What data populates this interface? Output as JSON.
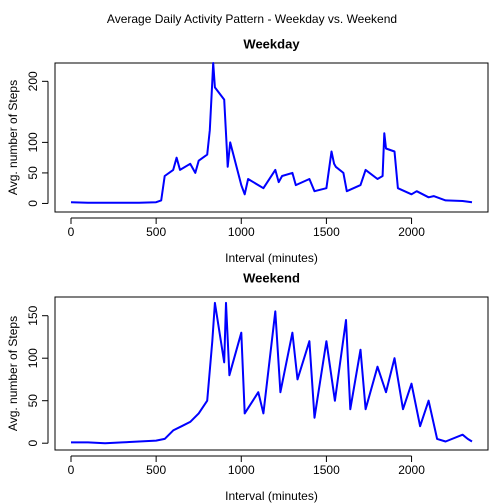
{
  "title": "Average Daily Activity Pattern - Weekday vs. Weekend",
  "chart_data": [
    {
      "type": "line",
      "title": "Weekday",
      "xlabel": "Interval (minutes)",
      "ylabel": "Avg. number of Steps",
      "color": "#0000ff",
      "x": [
        0,
        100,
        200,
        300,
        400,
        500,
        530,
        550,
        600,
        620,
        640,
        700,
        730,
        750,
        800,
        815,
        830,
        835,
        845,
        900,
        915,
        920,
        935,
        1000,
        1020,
        1040,
        1100,
        1130,
        1200,
        1220,
        1240,
        1300,
        1320,
        1400,
        1430,
        1500,
        1530,
        1545,
        1555,
        1600,
        1620,
        1700,
        1730,
        1800,
        1830,
        1840,
        1850,
        1900,
        1920,
        2000,
        2030,
        2100,
        2130,
        2200,
        2300,
        2355
      ],
      "values": [
        2,
        1,
        1,
        1,
        1,
        2,
        5,
        45,
        55,
        75,
        55,
        65,
        50,
        70,
        80,
        120,
        200,
        230,
        190,
        170,
        90,
        60,
        100,
        30,
        15,
        40,
        30,
        25,
        55,
        35,
        45,
        50,
        30,
        40,
        20,
        25,
        85,
        65,
        60,
        50,
        20,
        30,
        55,
        40,
        45,
        115,
        90,
        85,
        25,
        15,
        20,
        10,
        12,
        5,
        4,
        2
      ],
      "xlim": [
        -94,
        2449
      ],
      "ylim": [
        -14,
        230
      ],
      "xticks": [
        0,
        500,
        1000,
        1500,
        2000
      ],
      "yticks": [
        0,
        50,
        100,
        200
      ]
    },
    {
      "type": "line",
      "title": "Weekend",
      "xlabel": "Interval (minutes)",
      "ylabel": "Avg. number of Steps",
      "color": "#0000ff",
      "x": [
        0,
        100,
        200,
        300,
        400,
        500,
        550,
        600,
        650,
        700,
        750,
        800,
        830,
        845,
        900,
        910,
        930,
        1000,
        1020,
        1100,
        1130,
        1200,
        1230,
        1300,
        1330,
        1400,
        1430,
        1500,
        1550,
        1615,
        1640,
        1700,
        1730,
        1800,
        1850,
        1900,
        1950,
        2000,
        2050,
        2100,
        2150,
        2200,
        2300,
        2330,
        2355
      ],
      "values": [
        1,
        1,
        0,
        1,
        2,
        3,
        5,
        15,
        20,
        25,
        35,
        50,
        120,
        165,
        95,
        165,
        80,
        130,
        35,
        60,
        35,
        155,
        60,
        130,
        75,
        120,
        30,
        120,
        50,
        145,
        40,
        110,
        40,
        90,
        60,
        100,
        40,
        70,
        20,
        50,
        5,
        2,
        10,
        5,
        2
      ],
      "xlim": [
        -94,
        2449
      ],
      "ylim": [
        -8,
        172
      ],
      "xticks": [
        0,
        500,
        1000,
        1500,
        2000
      ],
      "yticks": [
        0,
        50,
        100,
        150
      ]
    }
  ]
}
